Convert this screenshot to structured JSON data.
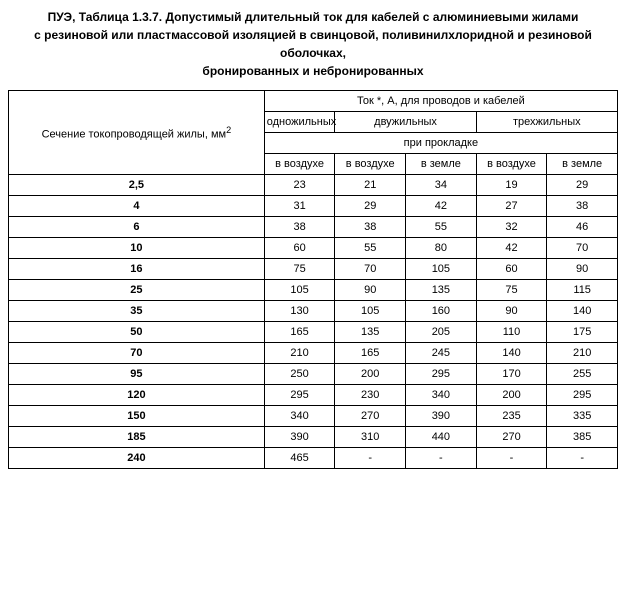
{
  "title_l1": "ПУЭ, Таблица 1.3.7. Допустимый длительный ток для кабелей с алюминиевыми жилами",
  "title_l2": "с резиновой или пластмассовой изоляцией в свинцовой, поливинилхлоридной и резиновой оболочках,",
  "title_l3": "бронированных и небронированных",
  "h_section_pre": "Сечение токопроводящей жилы, мм",
  "h_section_sup": "2",
  "h_current": "Ток *, А, для проводов и кабелей",
  "h_single": "одножильных",
  "h_double": "двужильных",
  "h_triple": "трехжильных",
  "h_layout": "при прокладке",
  "h_air": "в воздухе",
  "h_ground": "в земле",
  "rows": [
    {
      "s": "2,5",
      "v": [
        "23",
        "21",
        "34",
        "19",
        "29"
      ]
    },
    {
      "s": "4",
      "v": [
        "31",
        "29",
        "42",
        "27",
        "38"
      ]
    },
    {
      "s": "6",
      "v": [
        "38",
        "38",
        "55",
        "32",
        "46"
      ]
    },
    {
      "s": "10",
      "v": [
        "60",
        "55",
        "80",
        "42",
        "70"
      ]
    },
    {
      "s": "16",
      "v": [
        "75",
        "70",
        "105",
        "60",
        "90"
      ]
    },
    {
      "s": "25",
      "v": [
        "105",
        "90",
        "135",
        "75",
        "115"
      ]
    },
    {
      "s": "35",
      "v": [
        "130",
        "105",
        "160",
        "90",
        "140"
      ]
    },
    {
      "s": "50",
      "v": [
        "165",
        "135",
        "205",
        "110",
        "175"
      ]
    },
    {
      "s": "70",
      "v": [
        "210",
        "165",
        "245",
        "140",
        "210"
      ]
    },
    {
      "s": "95",
      "v": [
        "250",
        "200",
        "295",
        "170",
        "255"
      ]
    },
    {
      "s": "120",
      "v": [
        "295",
        "230",
        "340",
        "200",
        "295"
      ]
    },
    {
      "s": "150",
      "v": [
        "340",
        "270",
        "390",
        "235",
        "335"
      ]
    },
    {
      "s": "185",
      "v": [
        "390",
        "310",
        "440",
        "270",
        "385"
      ]
    },
    {
      "s": "240",
      "v": [
        "465",
        "-",
        "-",
        "-",
        "-"
      ]
    }
  ]
}
